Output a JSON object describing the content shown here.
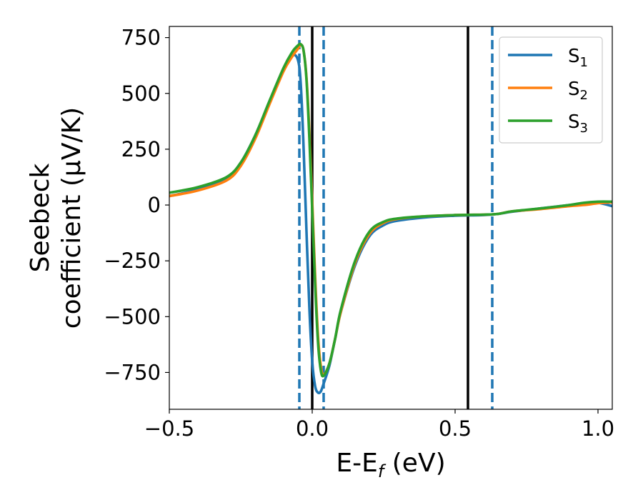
{
  "chart_data": {
    "type": "line",
    "xlabel": "E-E",
    "xlabel_sub": "f",
    "xlabel_unit": " (eV)",
    "ylabel_line1": "Seebeck",
    "ylabel_line2": "coefficient  (μV/K)",
    "xlim": [
      -0.5,
      1.05
    ],
    "ylim": [
      -915,
      800
    ],
    "xticks": [
      -0.5,
      0.0,
      0.5,
      1.0
    ],
    "xtick_labels": [
      "−0.5",
      "0.0",
      "0.5",
      "1.0"
    ],
    "yticks": [
      750,
      500,
      250,
      0,
      -250,
      -500,
      -750
    ],
    "ytick_labels": [
      "750",
      "500",
      "250",
      "0",
      "−250",
      "−500",
      "−750"
    ],
    "legend": {
      "position": "top-right"
    },
    "series": [
      {
        "name": "S",
        "sub": "1",
        "color": "#1f77b4",
        "x": [
          -0.5,
          -0.4,
          -0.3,
          -0.25,
          -0.2,
          -0.15,
          -0.1,
          -0.07,
          -0.05,
          -0.04,
          -0.03,
          -0.02,
          -0.01,
          0.0,
          0.01,
          0.02,
          0.03,
          0.04,
          0.06,
          0.08,
          0.1,
          0.15,
          0.2,
          0.25,
          0.3,
          0.4,
          0.5,
          0.6,
          0.65,
          0.7,
          0.8,
          0.9,
          0.95,
          1.0,
          1.05
        ],
        "y": [
          40,
          70,
          120,
          190,
          310,
          460,
          610,
          670,
          650,
          540,
          250,
          -120,
          -460,
          -700,
          -810,
          -840,
          -835,
          -800,
          -720,
          -600,
          -480,
          -270,
          -140,
          -90,
          -70,
          -55,
          -48,
          -45,
          -40,
          -30,
          -15,
          0,
          5,
          10,
          -5
        ]
      },
      {
        "name": "S",
        "sub": "2",
        "color": "#ff7f0e",
        "x": [
          -0.5,
          -0.4,
          -0.3,
          -0.25,
          -0.2,
          -0.15,
          -0.1,
          -0.07,
          -0.05,
          -0.04,
          -0.03,
          -0.02,
          -0.01,
          0.0,
          0.01,
          0.02,
          0.03,
          0.04,
          0.06,
          0.08,
          0.1,
          0.15,
          0.2,
          0.25,
          0.3,
          0.4,
          0.5,
          0.6,
          0.65,
          0.7,
          0.8,
          0.9,
          0.95,
          1.0,
          1.05
        ],
        "y": [
          40,
          65,
          110,
          175,
          295,
          450,
          600,
          665,
          700,
          720,
          690,
          570,
          330,
          20,
          -310,
          -580,
          -720,
          -760,
          -710,
          -600,
          -480,
          -260,
          -130,
          -80,
          -62,
          -50,
          -45,
          -43,
          -40,
          -28,
          -18,
          -5,
          0,
          8,
          12
        ]
      },
      {
        "name": "S",
        "sub": "3",
        "color": "#2ca02c",
        "x": [
          -0.5,
          -0.4,
          -0.3,
          -0.25,
          -0.2,
          -0.15,
          -0.1,
          -0.07,
          -0.05,
          -0.04,
          -0.03,
          -0.02,
          -0.01,
          0.0,
          0.01,
          0.02,
          0.03,
          0.04,
          0.06,
          0.08,
          0.1,
          0.15,
          0.2,
          0.25,
          0.3,
          0.4,
          0.5,
          0.6,
          0.65,
          0.7,
          0.8,
          0.9,
          0.95,
          1.0,
          1.05
        ],
        "y": [
          55,
          80,
          125,
          190,
          310,
          465,
          615,
          685,
          715,
          720,
          690,
          560,
          300,
          -20,
          -350,
          -610,
          -740,
          -765,
          -710,
          -600,
          -470,
          -250,
          -120,
          -75,
          -60,
          -50,
          -45,
          -43,
          -40,
          -28,
          -15,
          0,
          10,
          15,
          15
        ]
      }
    ],
    "vlines": [
      {
        "x": -0.045,
        "style": "dashed",
        "color": "#1f77b4"
      },
      {
        "x": 0.04,
        "style": "dashed",
        "color": "#1f77b4"
      },
      {
        "x": 0.63,
        "style": "dashed",
        "color": "#1f77b4"
      },
      {
        "x": 0.0,
        "style": "solid",
        "color": "#000000"
      },
      {
        "x": 0.545,
        "style": "solid",
        "color": "#000000"
      }
    ]
  }
}
